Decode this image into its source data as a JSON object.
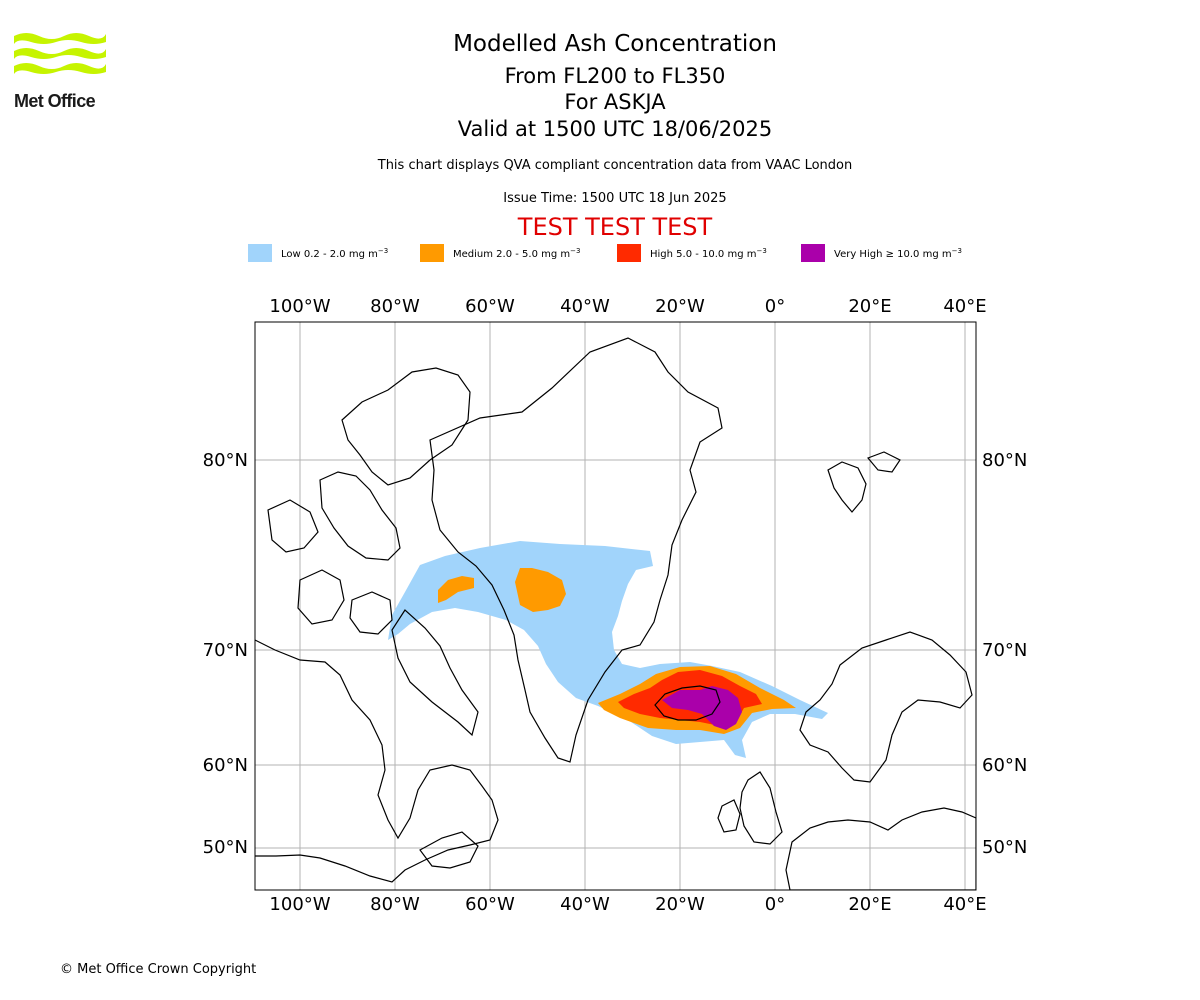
{
  "header": {
    "logo_text": "Met Office",
    "title": "Modelled Ash Concentration",
    "level_range": "From FL200 to FL350",
    "volcano": "For ASKJA",
    "valid_time": "Valid at 1500 UTC 18/06/2025",
    "description": "This chart displays QVA compliant concentration data from VAAC London",
    "issue_time": "Issue Time: 1500 UTC 18 Jun 2025",
    "test_banner": "TEST TEST TEST"
  },
  "legend": [
    {
      "label": "Low 0.2 - 2.0 mg m",
      "color": "#a1d4fb"
    },
    {
      "label": "Medium 2.0 - 5.0 mg m",
      "color": "#ff9a00"
    },
    {
      "label": "High 5.0 - 10.0 mg m",
      "color": "#ff2a00"
    },
    {
      "label": "Very High ≥ 10.0 mg m",
      "color": "#aa00aa"
    }
  ],
  "legend_unit_exponent": "−3",
  "map": {
    "lon_labels": [
      "100°W",
      "80°W",
      "60°W",
      "40°W",
      "20°W",
      "0°",
      "20°E",
      "40°E"
    ],
    "lat_labels": [
      "80°N",
      "70°N",
      "60°N",
      "50°N"
    ],
    "grid": true,
    "colors": {
      "low": "#a1d4fb",
      "medium": "#ff9a00",
      "high": "#ff2a00",
      "very_high": "#aa00aa",
      "logo": "#c6f400"
    }
  },
  "footer": {
    "copyright": "© Met Office Crown Copyright"
  }
}
